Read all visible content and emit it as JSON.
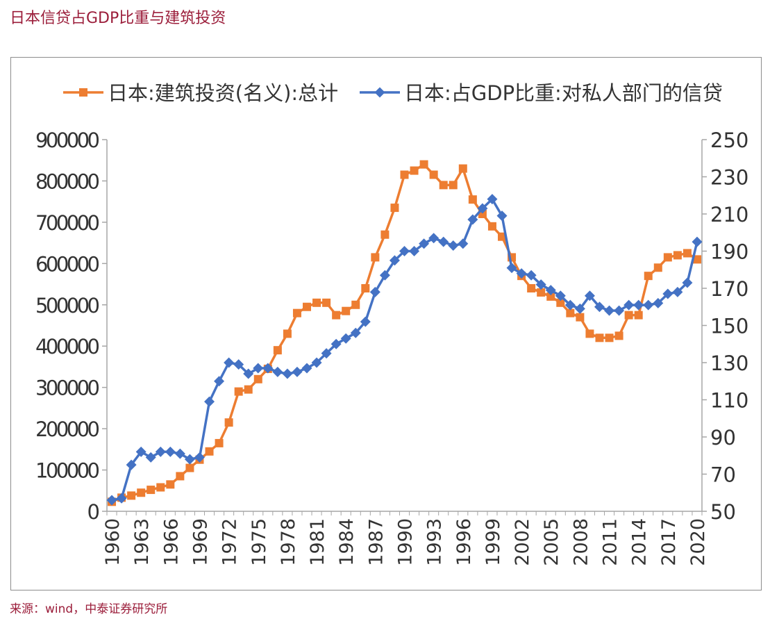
{
  "page": {
    "title": "日本信贷占GDP比重与建筑投资",
    "source": "来源：wind，中泰证券研究所"
  },
  "chart_data": {
    "type": "line",
    "title": "",
    "legend_position": "top",
    "grid": false,
    "x": [
      1960,
      1961,
      1962,
      1963,
      1964,
      1965,
      1966,
      1967,
      1968,
      1969,
      1970,
      1971,
      1972,
      1973,
      1974,
      1975,
      1976,
      1977,
      1978,
      1979,
      1980,
      1981,
      1982,
      1983,
      1984,
      1985,
      1986,
      1987,
      1988,
      1989,
      1990,
      1991,
      1992,
      1993,
      1994,
      1995,
      1996,
      1997,
      1998,
      1999,
      2000,
      2001,
      2002,
      2003,
      2004,
      2005,
      2006,
      2007,
      2008,
      2009,
      2010,
      2011,
      2012,
      2013,
      2014,
      2015,
      2016,
      2017,
      2018,
      2019,
      2020
    ],
    "x_tick_labels": [
      "1960",
      "1963",
      "1966",
      "1969",
      "1972",
      "1975",
      "1978",
      "1981",
      "1984",
      "1987",
      "1990",
      "1993",
      "1996",
      "1999",
      "2002",
      "2005",
      "2008",
      "2011",
      "2014",
      "2017",
      "2020"
    ],
    "y_left": {
      "ylim": [
        0,
        900000
      ],
      "ticks": [
        "0",
        "100000",
        "200000",
        "300000",
        "400000",
        "500000",
        "600000",
        "700000",
        "800000",
        "900000"
      ]
    },
    "y_right": {
      "ylim": [
        50,
        250
      ],
      "ticks": [
        "50",
        "70",
        "90",
        "110",
        "130",
        "150",
        "170",
        "190",
        "210",
        "230",
        "250"
      ]
    },
    "colors": {
      "series1": "#ed7d31",
      "series2": "#4472c4"
    },
    "series": [
      {
        "name": "日本:建筑投资(名义):总计",
        "axis": "left",
        "marker": "square",
        "values": [
          23000,
          33000,
          38000,
          45000,
          52000,
          58000,
          65000,
          85000,
          105000,
          125000,
          145000,
          165000,
          215000,
          290000,
          295000,
          320000,
          345000,
          390000,
          430000,
          480000,
          495000,
          505000,
          505000,
          475000,
          485000,
          500000,
          540000,
          615000,
          670000,
          735000,
          815000,
          825000,
          840000,
          815000,
          790000,
          790000,
          830000,
          755000,
          720000,
          690000,
          665000,
          615000,
          570000,
          540000,
          530000,
          520000,
          505000,
          480000,
          470000,
          430000,
          420000,
          420000,
          425000,
          475000,
          475000,
          570000,
          590000,
          615000,
          620000,
          625000,
          610000
        ]
      },
      {
        "name": "日本:占GDP比重:对私人部门的信贷",
        "axis": "right",
        "marker": "diamond",
        "values": [
          56,
          57,
          75,
          82,
          79,
          82,
          82,
          81,
          78,
          79,
          109,
          120,
          130,
          129,
          124,
          127,
          127,
          125,
          124,
          125,
          127,
          130,
          135,
          140,
          143,
          146,
          152,
          168,
          177,
          185,
          190,
          190,
          194,
          197,
          195,
          193,
          194,
          207,
          213,
          218,
          209,
          181,
          178,
          177,
          172,
          169,
          166,
          161,
          159,
          166,
          160,
          158,
          158,
          161,
          161,
          161,
          162,
          167,
          168,
          173,
          195
        ]
      }
    ]
  }
}
